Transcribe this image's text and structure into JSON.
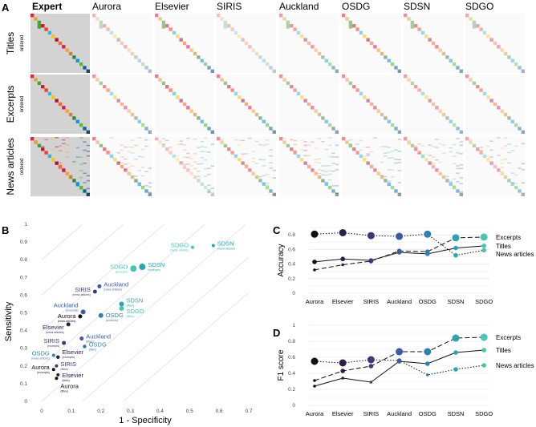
{
  "panel_labels": [
    "A",
    "B",
    "C",
    "D"
  ],
  "chart_data": [
    {
      "type": "heatmap",
      "panel": "A",
      "columns": [
        "Expert",
        "Aurora",
        "Elsevier",
        "SIRIS",
        "Auckland",
        "OSDG",
        "SDSN",
        "SDGO"
      ],
      "rows": [
        {
          "label": "Titles",
          "sublabel": "ordered"
        },
        {
          "label": "Excerpts",
          "sublabel": "ordered"
        },
        {
          "label": "News articles",
          "sublabel": "ordered"
        }
      ],
      "sdg_colors": [
        "#e5243b",
        "#dda63a",
        "#4c9f38",
        "#c5192d",
        "#ff3a21",
        "#26bde2",
        "#fcc30b",
        "#a21942",
        "#fd6925",
        "#dd1367",
        "#fd9d24",
        "#bf8b2e",
        "#3f7e44",
        "#0a97d9",
        "#56c02b",
        "#00689d",
        "#19486a"
      ]
    },
    {
      "type": "scatter",
      "panel": "B",
      "xlabel": "1 - Specificity",
      "ylabel": "Sensitivity",
      "xlim": [
        0,
        0.7
      ],
      "ylim": [
        0,
        1
      ],
      "xticks": [
        "0",
        "0.1",
        "0.2",
        "0.3",
        "0.4",
        "0.5",
        "0.6",
        "0.7"
      ],
      "yticks": [
        "0",
        "0.1",
        "0.2",
        "0.3",
        "0.4",
        "0.5",
        "0.6",
        "0.7",
        "0.8",
        "0.9",
        "1"
      ],
      "points": [
        {
          "name": "SDGO",
          "type": "(news articles)",
          "x": 0.51,
          "y": 0.87,
          "color": "#45c7b0",
          "size": 3
        },
        {
          "name": "SDSN",
          "type": "(news articles)",
          "x": 0.58,
          "y": 0.88,
          "color": "#2aa5b0",
          "size": 3
        },
        {
          "name": "SDGO",
          "type": "(excerpts)",
          "x": 0.31,
          "y": 0.75,
          "color": "#45c7b0",
          "size": 7
        },
        {
          "name": "SDSN",
          "type": "(excerpts)",
          "x": 0.34,
          "y": 0.76,
          "color": "#2aa5b0",
          "size": 7
        },
        {
          "name": "Auckland",
          "type": "(news articles)",
          "x": 0.195,
          "y": 0.65,
          "color": "#3c5aa6",
          "size": 4
        },
        {
          "name": "SIRIS",
          "type": "(news articles)",
          "x": 0.18,
          "y": 0.62,
          "color": "#3b3a7a",
          "size": 4
        },
        {
          "name": "SDSN",
          "type": "(titles)",
          "x": 0.27,
          "y": 0.55,
          "color": "#2aa5b0",
          "size": 5
        },
        {
          "name": "SDGO",
          "type": "(titles)",
          "x": 0.27,
          "y": 0.525,
          "color": "#45c7b0",
          "size": 5
        },
        {
          "name": "Auckland",
          "type": "(excerpts)",
          "x": 0.14,
          "y": 0.505,
          "color": "#3c5aa6",
          "size": 5
        },
        {
          "name": "Aurora",
          "type": "(news articles)",
          "x": 0.13,
          "y": 0.48,
          "color": "#111111",
          "size": 4
        },
        {
          "name": "OSDG",
          "type": "(excerpts)",
          "x": 0.2,
          "y": 0.485,
          "color": "#2f7fb0",
          "size": 5
        },
        {
          "name": "Elsevier",
          "type": "(news articles)",
          "x": 0.09,
          "y": 0.435,
          "color": "#2d1e4a",
          "size": 4
        },
        {
          "name": "Auckland",
          "type": "(titles)",
          "x": 0.135,
          "y": 0.355,
          "color": "#3c5aa6",
          "size": 4
        },
        {
          "name": "SIRIS",
          "type": "(excerpts)",
          "x": 0.075,
          "y": 0.33,
          "color": "#3b3a7a",
          "size": 4
        },
        {
          "name": "OSDG",
          "type": "(titles)",
          "x": 0.145,
          "y": 0.31,
          "color": "#2f7fb0",
          "size": 3.5
        },
        {
          "name": "Elsevier",
          "type": "(excerpts)",
          "x": 0.055,
          "y": 0.25,
          "color": "#2d1e4a",
          "size": 3.5
        },
        {
          "name": "OSDG",
          "type": "(news articles)",
          "x": 0.04,
          "y": 0.26,
          "color": "#2f7fb0",
          "size": 3
        },
        {
          "name": "SIRIS",
          "type": "(titles)",
          "x": 0.05,
          "y": 0.2,
          "color": "#3b3a7a",
          "size": 3
        },
        {
          "name": "Aurora",
          "type": "(excerpts)",
          "x": 0.04,
          "y": 0.18,
          "color": "#111111",
          "size": 3
        },
        {
          "name": "Elsevier",
          "type": "(titles)",
          "x": 0.055,
          "y": 0.15,
          "color": "#2d1e4a",
          "size": 3
        },
        {
          "name": "Aurora",
          "type": "(titles)",
          "x": 0.05,
          "y": 0.13,
          "color": "#111111",
          "size": 3
        }
      ]
    },
    {
      "type": "line",
      "panel": "C",
      "ylabel": "Accuracy",
      "categories": [
        "Aurora",
        "Elsevier",
        "SIRIS",
        "Auckland",
        "OSDG",
        "SDSN",
        "SDGO"
      ],
      "ylim": [
        0,
        0.9
      ],
      "yticks": [
        "0",
        "0.2",
        "0.4",
        "0.6",
        "0.8"
      ],
      "point_colors": [
        "#111111",
        "#2d1e4a",
        "#3b3a7a",
        "#3c5aa6",
        "#2f7fb0",
        "#2aa5b0",
        "#45c7b0"
      ],
      "series": [
        {
          "name": "Excerpts",
          "style": "dashed",
          "values": [
            0.32,
            0.39,
            0.44,
            0.58,
            0.57,
            0.76,
            0.77
          ]
        },
        {
          "name": "Titles",
          "style": "solid",
          "values": [
            0.43,
            0.47,
            0.45,
            0.56,
            0.54,
            0.62,
            0.65
          ]
        },
        {
          "name": "News articles",
          "style": "dotted",
          "values": [
            0.81,
            0.83,
            0.79,
            0.78,
            0.81,
            0.52,
            0.59
          ]
        }
      ]
    },
    {
      "type": "line",
      "panel": "D",
      "ylabel": "F1 score",
      "categories": [
        "Aurora",
        "Elsevier",
        "SIRIS",
        "Auckland",
        "OSDG",
        "SDSN",
        "SDGO"
      ],
      "ylim": [
        0,
        1
      ],
      "yticks": [
        "0",
        "0.2",
        "0.4",
        "0.6",
        "0.8",
        "1"
      ],
      "point_colors": [
        "#111111",
        "#2d1e4a",
        "#3b3a7a",
        "#3c5aa6",
        "#2f7fb0",
        "#2aa5b0",
        "#45c7b0"
      ],
      "series": [
        {
          "name": "Excerpts",
          "style": "dashed",
          "values": [
            0.31,
            0.43,
            0.49,
            0.67,
            0.67,
            0.84,
            0.85
          ]
        },
        {
          "name": "Titles",
          "style": "solid",
          "values": [
            0.24,
            0.34,
            0.29,
            0.55,
            0.52,
            0.66,
            0.69
          ]
        },
        {
          "name": "News articles",
          "style": "dotted",
          "values": [
            0.55,
            0.53,
            0.57,
            0.56,
            0.38,
            0.45,
            0.5
          ]
        }
      ]
    }
  ]
}
